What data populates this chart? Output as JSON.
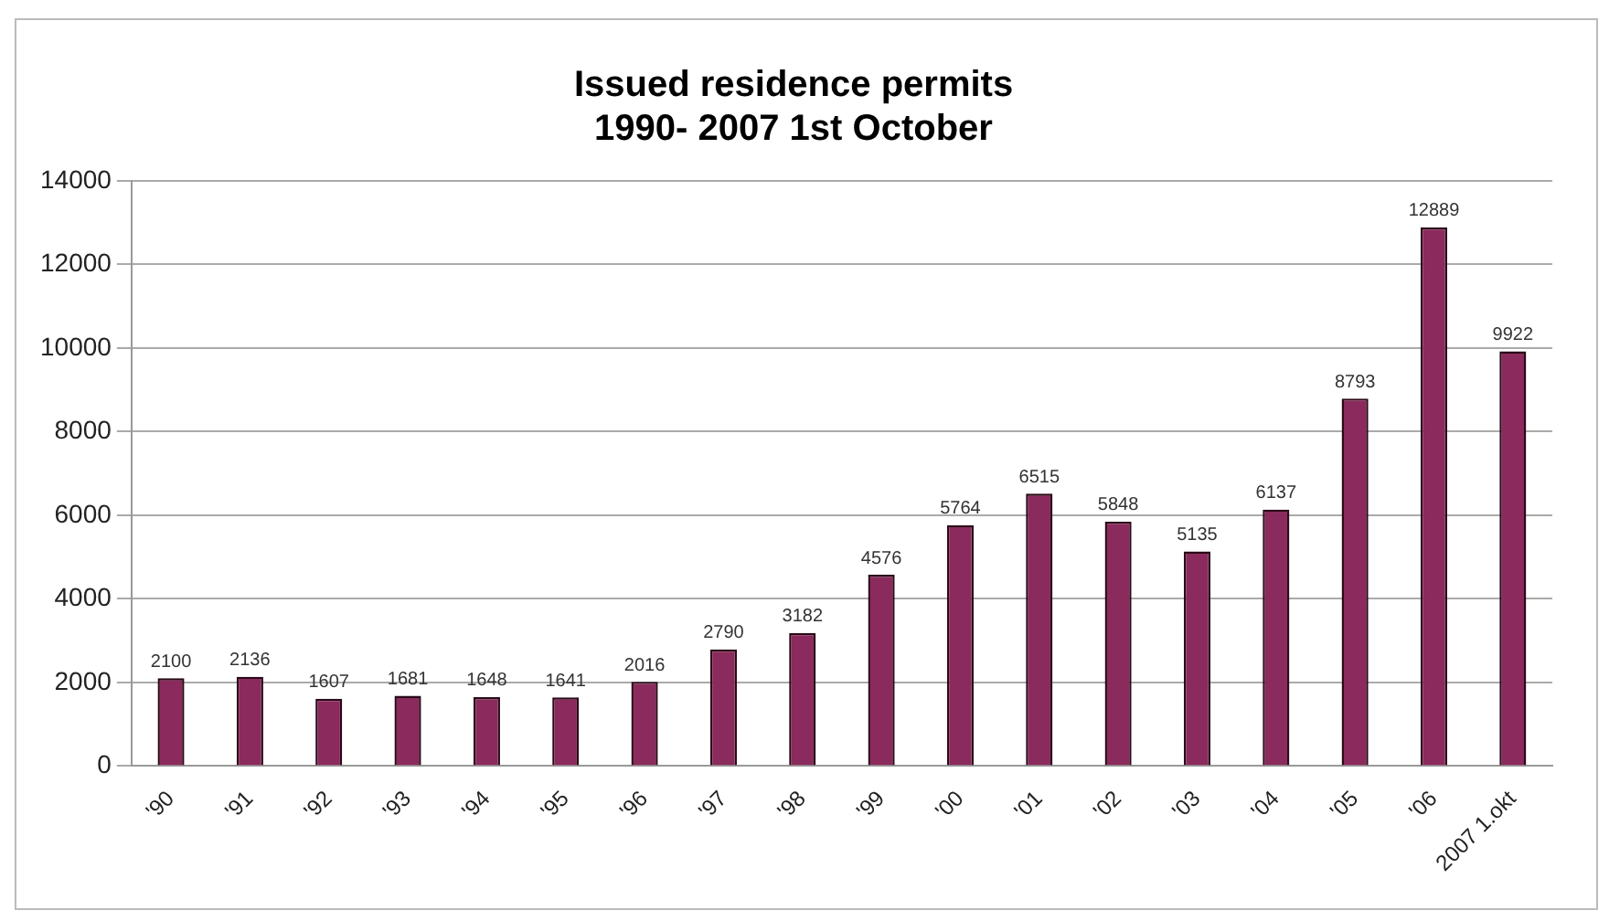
{
  "chart_data": {
    "type": "bar",
    "title": "Issued residence permits\n1990- 2007 1st October",
    "categories": [
      "'90",
      "'91",
      "'92",
      "'93",
      "'94",
      "'95",
      "'96",
      "'97",
      "'98",
      "'99",
      "'00",
      "'01",
      "'02",
      "'03",
      "'04",
      "'05",
      "'06",
      "2007 1.okt"
    ],
    "values": [
      2100,
      2136,
      1607,
      1681,
      1648,
      1641,
      2016,
      2790,
      3182,
      4576,
      5764,
      6515,
      5848,
      5135,
      6137,
      8793,
      12889,
      9922
    ],
    "color": "#8b2a5c",
    "ylim": [
      0,
      14000
    ],
    "yticks": [
      0,
      2000,
      4000,
      6000,
      8000,
      10000,
      12000,
      14000
    ],
    "grid": "y",
    "data_labels": true,
    "legend": false
  }
}
